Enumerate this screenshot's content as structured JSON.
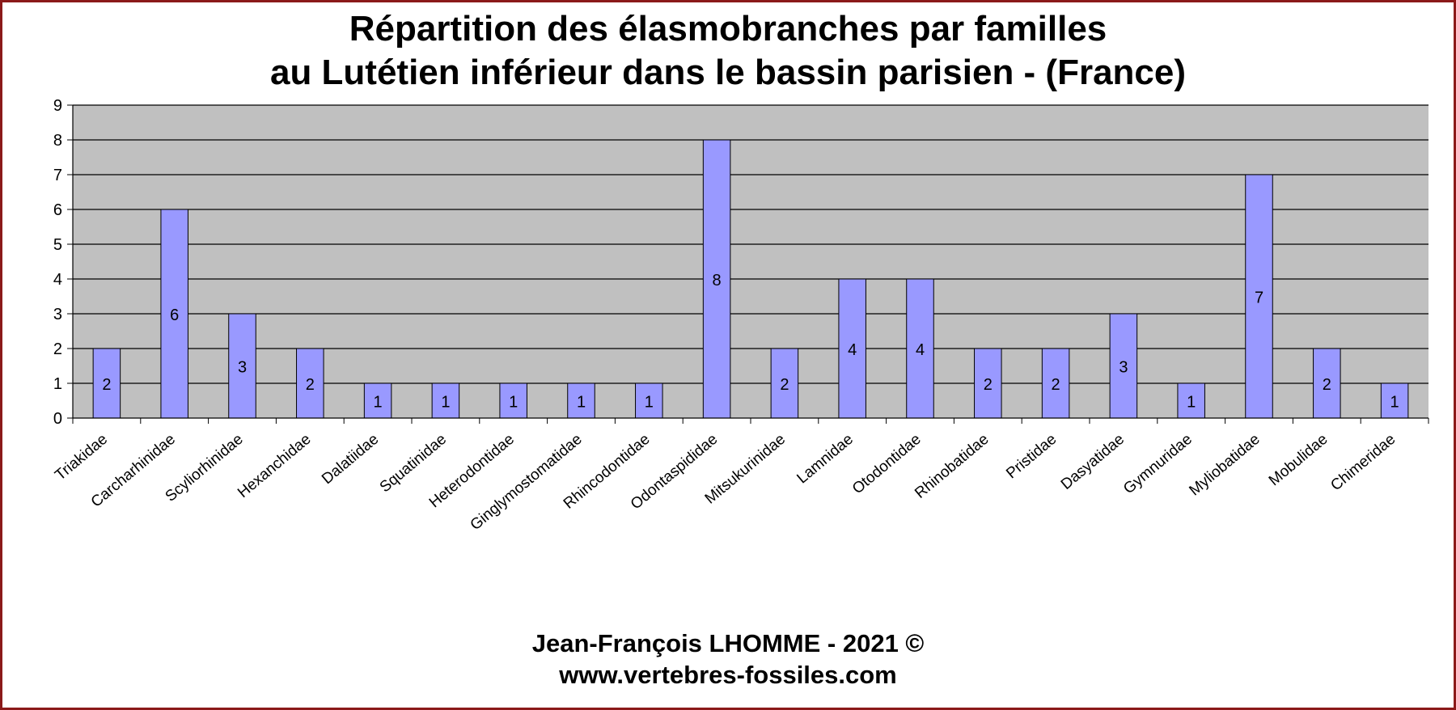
{
  "header": {
    "title_line1": "Répartition des élasmobranches par familles",
    "title_line2": "au Lutétien inférieur dans le bassin parisien - (France)"
  },
  "footer": {
    "credit": "Jean-François LHOMME  -  2021 ©",
    "website": "www.vertebres-fossiles.com"
  },
  "colors": {
    "plot_background": "#c0c0c0",
    "bar_fill": "#9999ff",
    "bar_stroke": "#000000",
    "grid": "#000000",
    "frame_border": "#8b1a1a"
  },
  "chart_data": {
    "type": "bar",
    "title": "Répartition des élasmobranches par familles au Lutétien inférieur dans le bassin parisien - (France)",
    "xlabel": "",
    "ylabel": "",
    "ylim": [
      0,
      9
    ],
    "yticks": [
      "0",
      "1",
      "2",
      "3",
      "4",
      "5",
      "6",
      "7",
      "8",
      "9"
    ],
    "grid": true,
    "legend": "none",
    "categories": [
      "Triakidae",
      "Carcharhinidae",
      "Scyliorhinidae",
      "Hexanchidae",
      "Dalatiidae",
      "Squatinidae",
      "Heterodontidae",
      "Ginglymostomatidae",
      "Rhincodontidae",
      "Odontaspididae",
      "Mitsukurinidae",
      "Lamnidae",
      "Otodontidae",
      "Rhinobatidae",
      "Pristidae",
      "Dasyatidae",
      "Gymnuridae",
      "Myliobatidae",
      "Mobulidae",
      "Chimeridae"
    ],
    "values": [
      2,
      6,
      3,
      2,
      1,
      1,
      1,
      1,
      1,
      8,
      2,
      4,
      4,
      2,
      2,
      3,
      1,
      7,
      2,
      1
    ],
    "data_labels": [
      "2",
      "6",
      "3",
      "2",
      "1",
      "1",
      "1",
      "1",
      "1",
      "8",
      "2",
      "4",
      "4",
      "2",
      "2",
      "3",
      "1",
      "7",
      "2",
      "1"
    ]
  }
}
